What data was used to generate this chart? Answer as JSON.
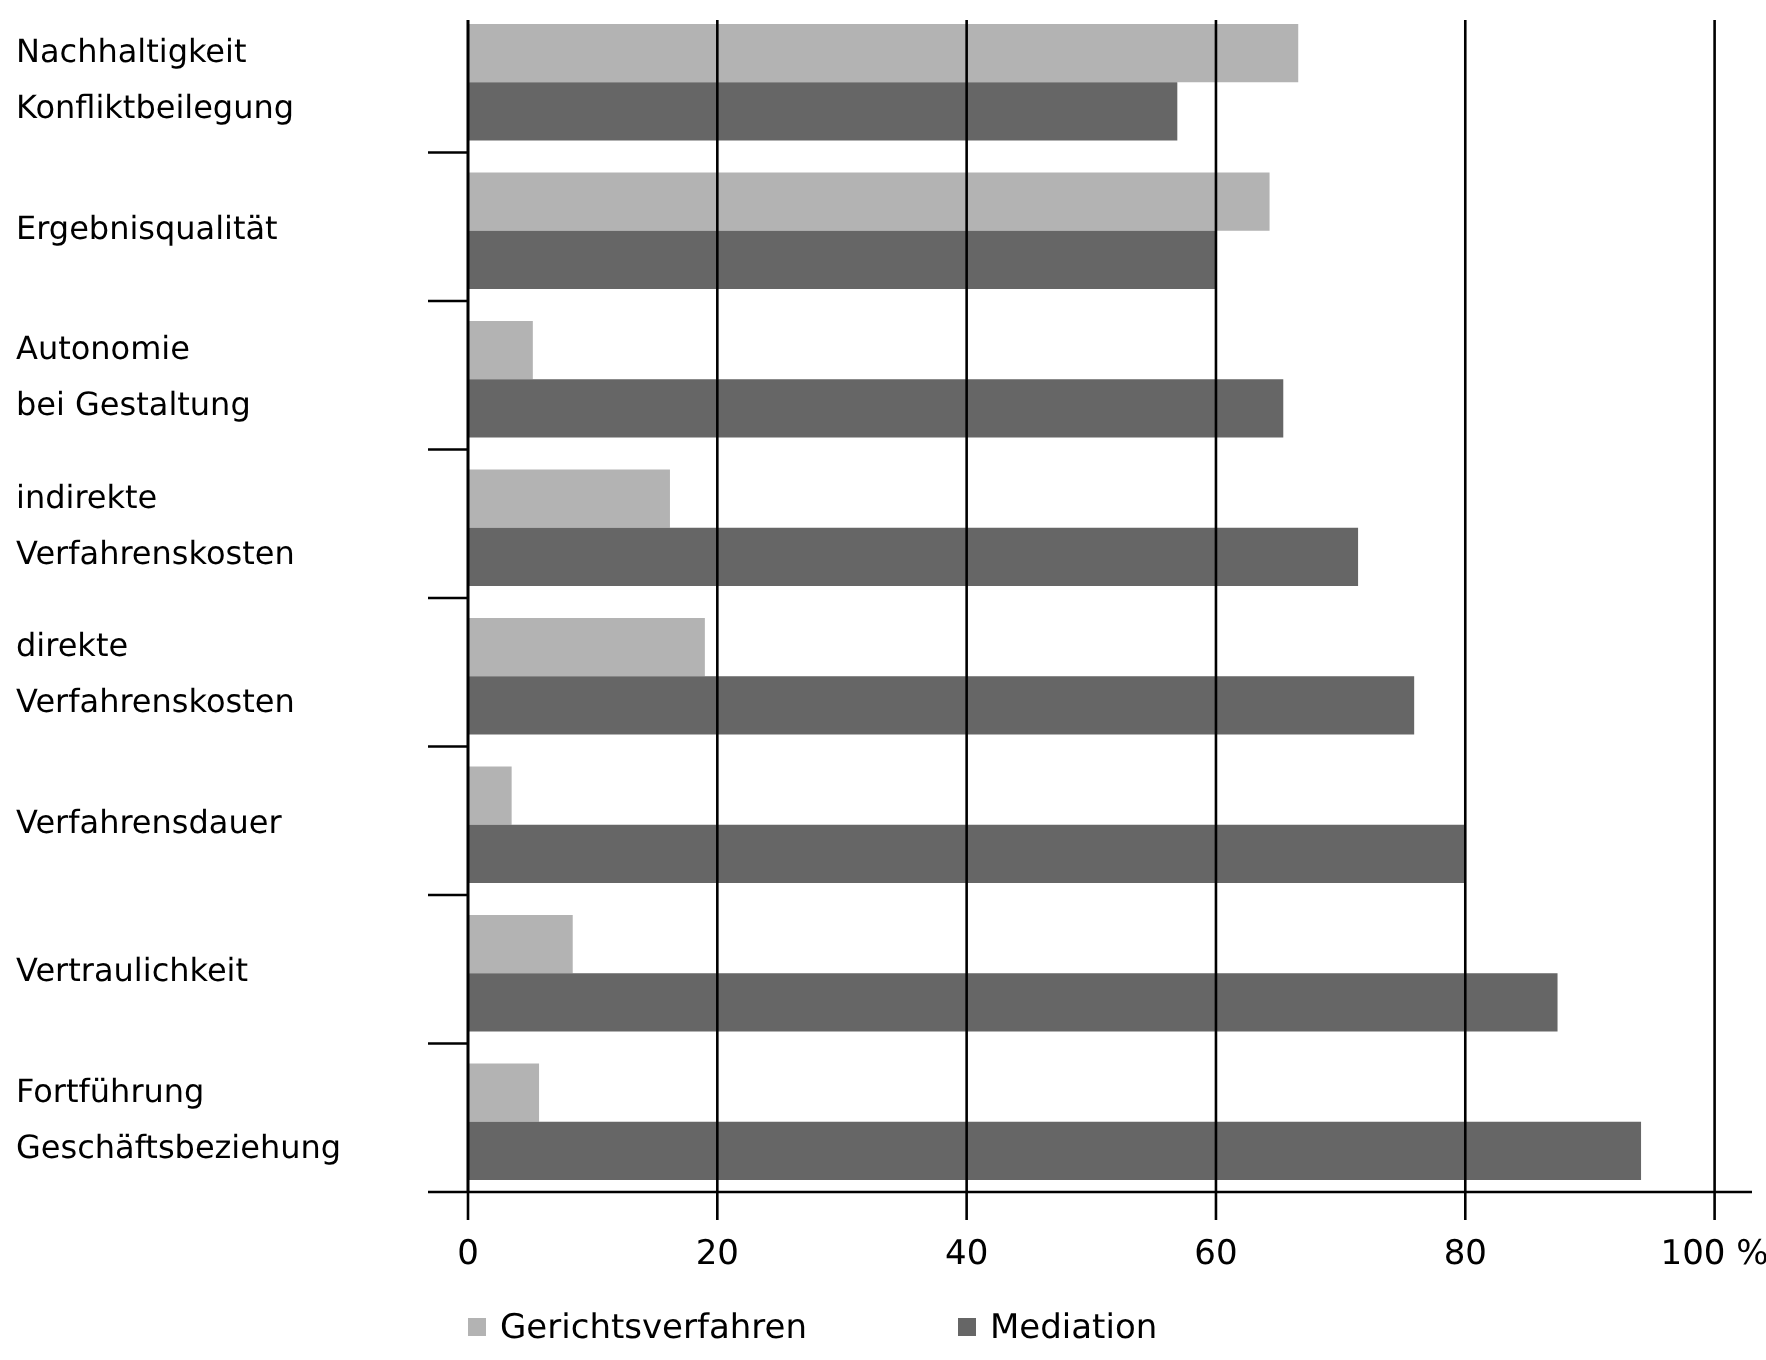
{
  "chart_data": {
    "type": "bar",
    "orientation": "horizontal",
    "categories": [
      "Nachhaltigkeit\nKonfliktbeilegung",
      "Ergebnisqualität",
      "Autonomie\nbei Gestaltung",
      "indirekte\nVerfahrenskosten",
      "direkte\nVerfahrenskosten",
      "Verfahrensdauer",
      "Vertraulichkeit",
      "Fortführung\nGeschäftsbeziehung"
    ],
    "series": [
      {
        "name": "Gerichtsverfahren",
        "color": "#b3b3b3",
        "values": [
          66.6,
          64.3,
          5.2,
          16.2,
          19.0,
          3.5,
          8.4,
          5.7
        ]
      },
      {
        "name": "Mediation",
        "color": "#666666",
        "values": [
          56.9,
          60.0,
          65.4,
          71.4,
          75.9,
          79.9,
          87.4,
          94.1
        ]
      }
    ],
    "xlim": [
      0,
      103
    ],
    "xticks": [
      0,
      20,
      40,
      60,
      80,
      {
        "value": 100,
        "label": "100 %"
      }
    ],
    "grid": "x",
    "legend": "bottom"
  }
}
